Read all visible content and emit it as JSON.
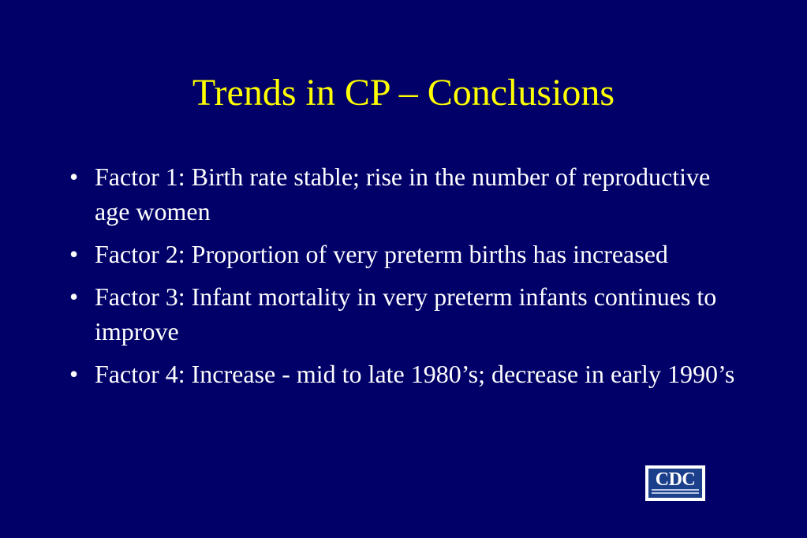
{
  "slide": {
    "title": "Trends in CP – Conclusions",
    "bullet_symbol": "•",
    "bullets": [
      {
        "text": "Factor 1:  Birth rate stable; rise in the number of reproductive age women"
      },
      {
        "text": "Factor 2:  Proportion of very preterm births has increased"
      },
      {
        "text": "Factor 3:  Infant mortality in very preterm infants continues to improve"
      },
      {
        "text": "Factor  4:  Increase - mid to late 1980’s; decrease in early 1990’s"
      }
    ],
    "logo": {
      "letters": "CDC",
      "icon": "cdc-logo",
      "colors": {
        "background": "#1c3f8c",
        "border": "#ffffff"
      }
    },
    "colors": {
      "background": "#000068",
      "title": "#ffff00",
      "body_text": "#ffffff"
    }
  }
}
